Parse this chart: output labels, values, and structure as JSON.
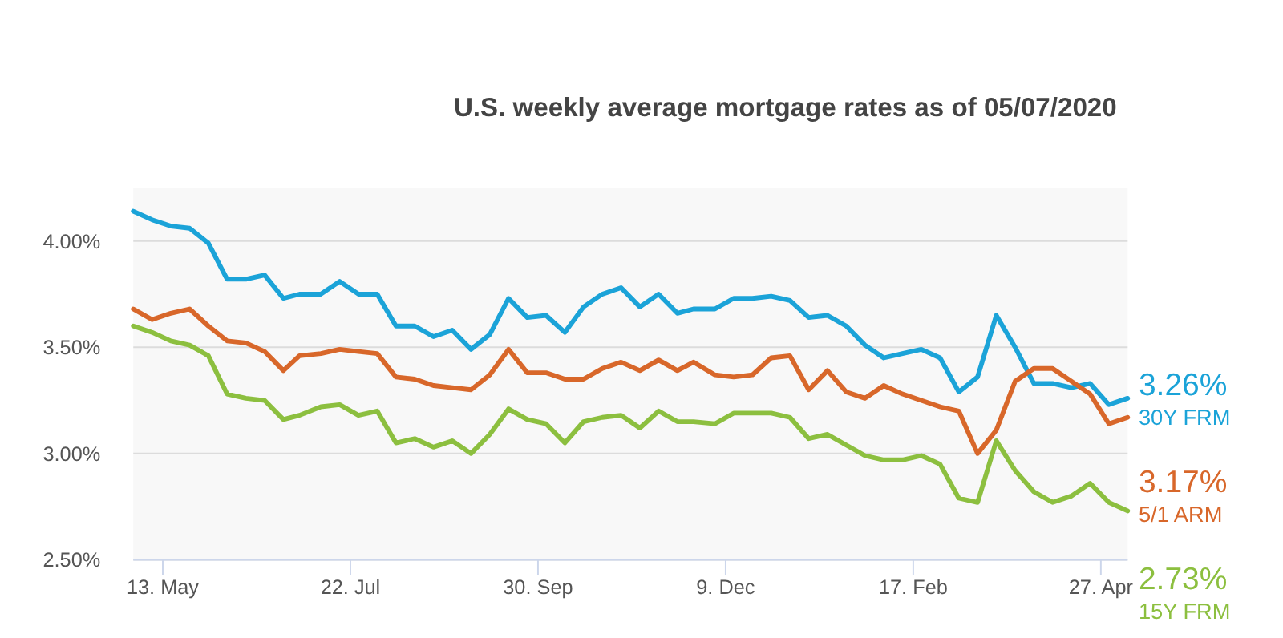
{
  "chart_data": {
    "type": "line",
    "subtitle": "U.S. weekly average mortgage rates as of 05/07/2020",
    "x": [
      "2019-05-02",
      "2019-05-09",
      "2019-05-16",
      "2019-05-23",
      "2019-05-30",
      "2019-06-06",
      "2019-06-13",
      "2019-06-20",
      "2019-06-27",
      "2019-07-03",
      "2019-07-11",
      "2019-07-18",
      "2019-07-25",
      "2019-08-01",
      "2019-08-08",
      "2019-08-15",
      "2019-08-22",
      "2019-08-29",
      "2019-09-05",
      "2019-09-12",
      "2019-09-19",
      "2019-09-26",
      "2019-10-03",
      "2019-10-10",
      "2019-10-17",
      "2019-10-24",
      "2019-10-31",
      "2019-11-07",
      "2019-11-14",
      "2019-11-21",
      "2019-11-27",
      "2019-12-05",
      "2019-12-12",
      "2019-12-19",
      "2019-12-26",
      "2020-01-02",
      "2020-01-09",
      "2020-01-16",
      "2020-01-23",
      "2020-01-30",
      "2020-02-06",
      "2020-02-13",
      "2020-02-20",
      "2020-02-27",
      "2020-03-05",
      "2020-03-12",
      "2020-03-19",
      "2020-03-26",
      "2020-04-02",
      "2020-04-09",
      "2020-04-16",
      "2020-04-23",
      "2020-04-30",
      "2020-05-07"
    ],
    "series": [
      {
        "name": "30Y FRM",
        "color": "#1ba3d8",
        "values": [
          4.14,
          4.1,
          4.07,
          4.06,
          3.99,
          3.82,
          3.82,
          3.84,
          3.73,
          3.75,
          3.75,
          3.81,
          3.75,
          3.75,
          3.6,
          3.6,
          3.55,
          3.58,
          3.49,
          3.56,
          3.73,
          3.64,
          3.65,
          3.57,
          3.69,
          3.75,
          3.78,
          3.69,
          3.75,
          3.66,
          3.68,
          3.68,
          3.73,
          3.73,
          3.74,
          3.72,
          3.64,
          3.65,
          3.6,
          3.51,
          3.45,
          3.47,
          3.49,
          3.45,
          3.29,
          3.36,
          3.65,
          3.5,
          3.33,
          3.33,
          3.31,
          3.33,
          3.23,
          3.26
        ],
        "value_labels": [
          null,
          null,
          null,
          null,
          null,
          null,
          null,
          null,
          null,
          null,
          null,
          null,
          null,
          null,
          null,
          null,
          null,
          null,
          null,
          null,
          null,
          null,
          null,
          null,
          null,
          null,
          null,
          null,
          null,
          null,
          null,
          null,
          null,
          null,
          null,
          null,
          null,
          null,
          null,
          null,
          null,
          null,
          null,
          null,
          null,
          null,
          null,
          null,
          null,
          null,
          null,
          null,
          null,
          "3.26%"
        ]
      },
      {
        "name": "5/1 ARM",
        "color": "#d8672a",
        "values": [
          3.68,
          3.63,
          3.66,
          3.68,
          3.6,
          3.53,
          3.52,
          3.48,
          3.39,
          3.46,
          3.47,
          3.49,
          3.48,
          3.47,
          3.36,
          3.35,
          3.32,
          3.31,
          3.3,
          3.37,
          3.49,
          3.38,
          3.38,
          3.35,
          3.35,
          3.4,
          3.43,
          3.39,
          3.44,
          3.39,
          3.43,
          3.37,
          3.36,
          3.37,
          3.45,
          3.46,
          3.3,
          3.39,
          3.29,
          3.26,
          3.32,
          3.28,
          3.25,
          3.22,
          3.2,
          3.0,
          3.11,
          3.34,
          3.4,
          3.4,
          3.34,
          3.28,
          3.14,
          3.17
        ],
        "value_labels": [
          null,
          null,
          null,
          null,
          null,
          null,
          null,
          null,
          null,
          null,
          null,
          null,
          null,
          null,
          null,
          null,
          null,
          null,
          null,
          null,
          null,
          null,
          null,
          null,
          null,
          null,
          null,
          null,
          null,
          null,
          null,
          null,
          null,
          null,
          null,
          null,
          null,
          null,
          null,
          null,
          null,
          null,
          null,
          null,
          null,
          null,
          null,
          null,
          null,
          null,
          null,
          null,
          null,
          "3.17%"
        ]
      },
      {
        "name": "15Y FRM",
        "color": "#8cbf3f",
        "values": [
          3.6,
          3.57,
          3.53,
          3.51,
          3.46,
          3.28,
          3.26,
          3.25,
          3.16,
          3.18,
          3.22,
          3.23,
          3.18,
          3.2,
          3.05,
          3.07,
          3.03,
          3.06,
          3.0,
          3.09,
          3.21,
          3.16,
          3.14,
          3.05,
          3.15,
          3.17,
          3.18,
          3.12,
          3.2,
          3.15,
          3.15,
          3.14,
          3.19,
          3.19,
          3.19,
          3.17,
          3.07,
          3.09,
          3.04,
          2.99,
          2.97,
          2.97,
          2.99,
          2.95,
          2.79,
          2.77,
          3.06,
          2.92,
          2.82,
          2.77,
          2.8,
          2.86,
          2.77,
          2.73
        ],
        "value_labels": [
          null,
          null,
          null,
          null,
          null,
          null,
          null,
          null,
          null,
          null,
          null,
          null,
          null,
          null,
          null,
          null,
          null,
          null,
          null,
          null,
          null,
          null,
          null,
          null,
          null,
          null,
          null,
          null,
          null,
          null,
          null,
          null,
          null,
          null,
          null,
          null,
          null,
          null,
          null,
          null,
          null,
          null,
          null,
          null,
          null,
          null,
          null,
          null,
          null,
          null,
          null,
          null,
          null,
          "2.73%"
        ]
      }
    ],
    "xlim": [
      "2019-05-02",
      "2020-05-07"
    ],
    "xticks": [
      {
        "value": "2019-05-13",
        "label": "13. May"
      },
      {
        "value": "2019-07-22",
        "label": "22. Jul"
      },
      {
        "value": "2019-09-30",
        "label": "30. Sep"
      },
      {
        "value": "2019-12-09",
        "label": "9. Dec"
      },
      {
        "value": "2020-02-17",
        "label": "17. Feb"
      },
      {
        "value": "2020-04-27",
        "label": "27. Apr"
      }
    ],
    "ylim": [
      2.5,
      4.25
    ],
    "yticks": [
      {
        "value": 2.5,
        "label": "2.50%"
      },
      {
        "value": 3,
        "label": "3.00%"
      },
      {
        "value": 3.5,
        "label": "3.50%"
      },
      {
        "value": 4,
        "label": "4.00%"
      }
    ],
    "grid": "y",
    "marker": "none",
    "line_style": "solid",
    "legend": false
  }
}
